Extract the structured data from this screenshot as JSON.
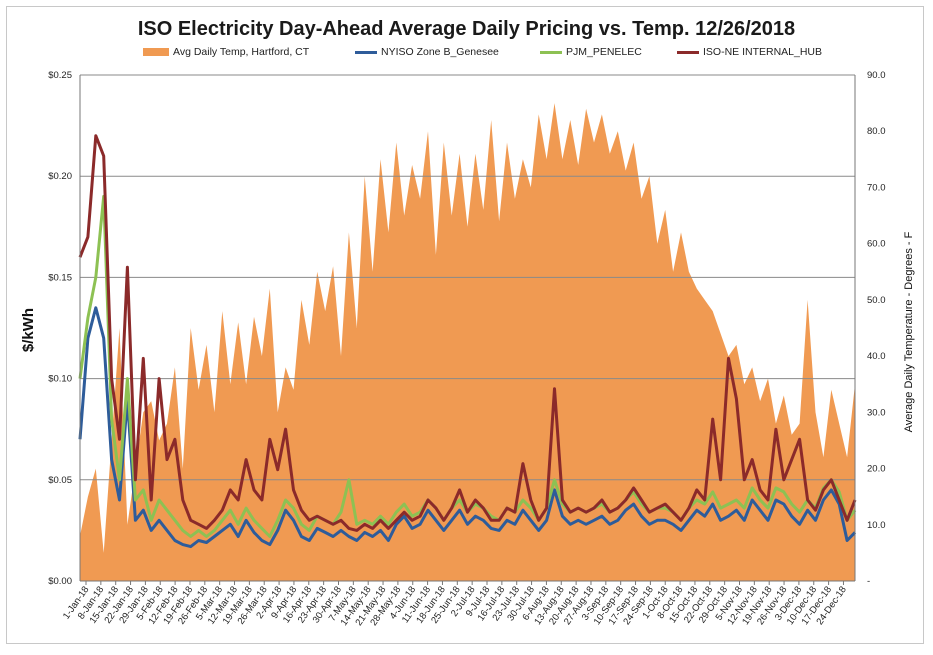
{
  "chart_data": {
    "type": "area+line",
    "title": "ISO Electricity Day-Ahead Average Daily Pricing vs. Temp. 12/26/2018",
    "ylabel_left": "$/kWh",
    "ylabel_right": "Average Daily Temperature - Degrees - F",
    "ylim_left": [
      0,
      0.25
    ],
    "ylim_right": [
      0,
      90
    ],
    "yticks_left": [
      "$0.00",
      "$0.05",
      "$0.10",
      "$0.15",
      "$0.20",
      "$0.25"
    ],
    "yticks_right": [
      "-",
      "10.0",
      "20.0",
      "30.0",
      "40.0",
      "50.0",
      "60.0",
      "70.0",
      "80.0",
      "90.0"
    ],
    "xticks": [
      "1-Jan-18",
      "8-Jan-18",
      "15-Jan-18",
      "22-Jan-18",
      "29-Jan-18",
      "5-Feb-18",
      "12-Feb-18",
      "19-Feb-18",
      "26-Feb-18",
      "5-Mar-18",
      "12-Mar-18",
      "19-Mar-18",
      "26-Mar-18",
      "2-Apr-18",
      "9-Apr-18",
      "16-Apr-18",
      "23-Apr-18",
      "30-Apr-18",
      "7-May-18",
      "14-May-18",
      "21-May-18",
      "28-May-18",
      "4-Jun-18",
      "11-Jun-18",
      "18-Jun-18",
      "25-Jun-18",
      "2-Jul-18",
      "9-Jul-18",
      "16-Jul-18",
      "23-Jul-18",
      "30-Jul-18",
      "6-Aug-18",
      "13-Aug-18",
      "20-Aug-18",
      "27-Aug-18",
      "3-Sep-18",
      "10-Sep-18",
      "17-Sep-18",
      "24-Sep-18",
      "1-Oct-18",
      "8-Oct-18",
      "15-Oct-18",
      "22-Oct-18",
      "29-Oct-18",
      "5-Nov-18",
      "12-Nov-18",
      "19-Nov-18",
      "26-Nov-18",
      "3-Dec-18",
      "10-Dec-18",
      "17-Dec-18",
      "24-Dec-18"
    ],
    "grid": "horizontal",
    "legend_position": "top",
    "series": [
      {
        "name": "Avg Daily Temp, Hartford, CT",
        "kind": "area",
        "axis": "right",
        "color": "#F09A52",
        "values": [
          8,
          15,
          20,
          5,
          25,
          45,
          10,
          20,
          30,
          32,
          25,
          28,
          38,
          20,
          45,
          34,
          42,
          30,
          48,
          35,
          46,
          35,
          47,
          40,
          52,
          30,
          38,
          34,
          50,
          42,
          55,
          48,
          56,
          40,
          62,
          45,
          72,
          55,
          75,
          62,
          78,
          65,
          74,
          68,
          80,
          58,
          78,
          65,
          76,
          63,
          76,
          66,
          82,
          64,
          78,
          68,
          75,
          70,
          83,
          75,
          85,
          75,
          82,
          74,
          84,
          78,
          83,
          76,
          80,
          73,
          78,
          68,
          72,
          60,
          66,
          55,
          62,
          55,
          52,
          50,
          48,
          44,
          40,
          42,
          35,
          38,
          32,
          36,
          28,
          33,
          26,
          28,
          50,
          30,
          22,
          34,
          28,
          22,
          35
        ]
      },
      {
        "name": "NYISO Zone B_Genesee",
        "kind": "line",
        "axis": "left",
        "color": "#2E5C9A",
        "values": [
          0.07,
          0.12,
          0.135,
          0.12,
          0.06,
          0.04,
          0.09,
          0.03,
          0.035,
          0.025,
          0.03,
          0.025,
          0.02,
          0.018,
          0.017,
          0.02,
          0.019,
          0.022,
          0.025,
          0.028,
          0.022,
          0.03,
          0.024,
          0.02,
          0.018,
          0.025,
          0.035,
          0.03,
          0.022,
          0.02,
          0.026,
          0.024,
          0.022,
          0.025,
          0.022,
          0.02,
          0.024,
          0.022,
          0.025,
          0.02,
          0.028,
          0.032,
          0.026,
          0.028,
          0.035,
          0.03,
          0.025,
          0.03,
          0.035,
          0.028,
          0.032,
          0.03,
          0.026,
          0.025,
          0.03,
          0.028,
          0.035,
          0.03,
          0.025,
          0.03,
          0.045,
          0.032,
          0.028,
          0.03,
          0.028,
          0.03,
          0.032,
          0.028,
          0.03,
          0.035,
          0.038,
          0.032,
          0.028,
          0.03,
          0.03,
          0.028,
          0.025,
          0.03,
          0.035,
          0.032,
          0.038,
          0.03,
          0.032,
          0.035,
          0.03,
          0.04,
          0.035,
          0.03,
          0.04,
          0.038,
          0.032,
          0.028,
          0.035,
          0.03,
          0.04,
          0.045,
          0.038,
          0.02,
          0.024
        ]
      },
      {
        "name": "PJM_PENELEC",
        "kind": "line",
        "axis": "left",
        "color": "#8DC153",
        "values": [
          0.1,
          0.13,
          0.15,
          0.19,
          0.08,
          0.05,
          0.1,
          0.04,
          0.045,
          0.03,
          0.04,
          0.035,
          0.03,
          0.025,
          0.022,
          0.025,
          0.022,
          0.025,
          0.03,
          0.035,
          0.028,
          0.036,
          0.03,
          0.026,
          0.022,
          0.03,
          0.04,
          0.036,
          0.028,
          0.025,
          0.032,
          0.03,
          0.028,
          0.034,
          0.05,
          0.028,
          0.03,
          0.028,
          0.032,
          0.028,
          0.034,
          0.038,
          0.032,
          0.034,
          0.04,
          0.036,
          0.03,
          0.036,
          0.04,
          0.034,
          0.038,
          0.036,
          0.032,
          0.03,
          0.036,
          0.034,
          0.04,
          0.036,
          0.03,
          0.036,
          0.05,
          0.038,
          0.034,
          0.036,
          0.034,
          0.036,
          0.038,
          0.034,
          0.036,
          0.04,
          0.044,
          0.038,
          0.034,
          0.036,
          0.036,
          0.034,
          0.03,
          0.036,
          0.04,
          0.038,
          0.044,
          0.036,
          0.038,
          0.04,
          0.036,
          0.046,
          0.04,
          0.036,
          0.046,
          0.044,
          0.038,
          0.034,
          0.04,
          0.036,
          0.046,
          0.05,
          0.044,
          0.03,
          0.035
        ]
      },
      {
        "name": "ISO-NE INTERNAL_HUB",
        "kind": "line",
        "axis": "left",
        "color": "#8B2A2A",
        "values": [
          0.16,
          0.17,
          0.22,
          0.21,
          0.1,
          0.07,
          0.155,
          0.05,
          0.11,
          0.04,
          0.1,
          0.06,
          0.07,
          0.04,
          0.03,
          0.028,
          0.026,
          0.03,
          0.035,
          0.045,
          0.04,
          0.06,
          0.045,
          0.04,
          0.07,
          0.055,
          0.075,
          0.045,
          0.035,
          0.03,
          0.032,
          0.03,
          0.028,
          0.03,
          0.026,
          0.025,
          0.028,
          0.026,
          0.03,
          0.026,
          0.03,
          0.034,
          0.03,
          0.032,
          0.04,
          0.036,
          0.03,
          0.036,
          0.045,
          0.034,
          0.04,
          0.036,
          0.03,
          0.03,
          0.036,
          0.034,
          0.058,
          0.04,
          0.03,
          0.036,
          0.095,
          0.04,
          0.034,
          0.036,
          0.034,
          0.036,
          0.04,
          0.034,
          0.036,
          0.04,
          0.046,
          0.04,
          0.034,
          0.036,
          0.038,
          0.034,
          0.03,
          0.036,
          0.045,
          0.04,
          0.08,
          0.05,
          0.11,
          0.09,
          0.05,
          0.06,
          0.045,
          0.04,
          0.075,
          0.05,
          0.06,
          0.07,
          0.04,
          0.035,
          0.045,
          0.05,
          0.04,
          0.03,
          0.04
        ]
      }
    ]
  }
}
